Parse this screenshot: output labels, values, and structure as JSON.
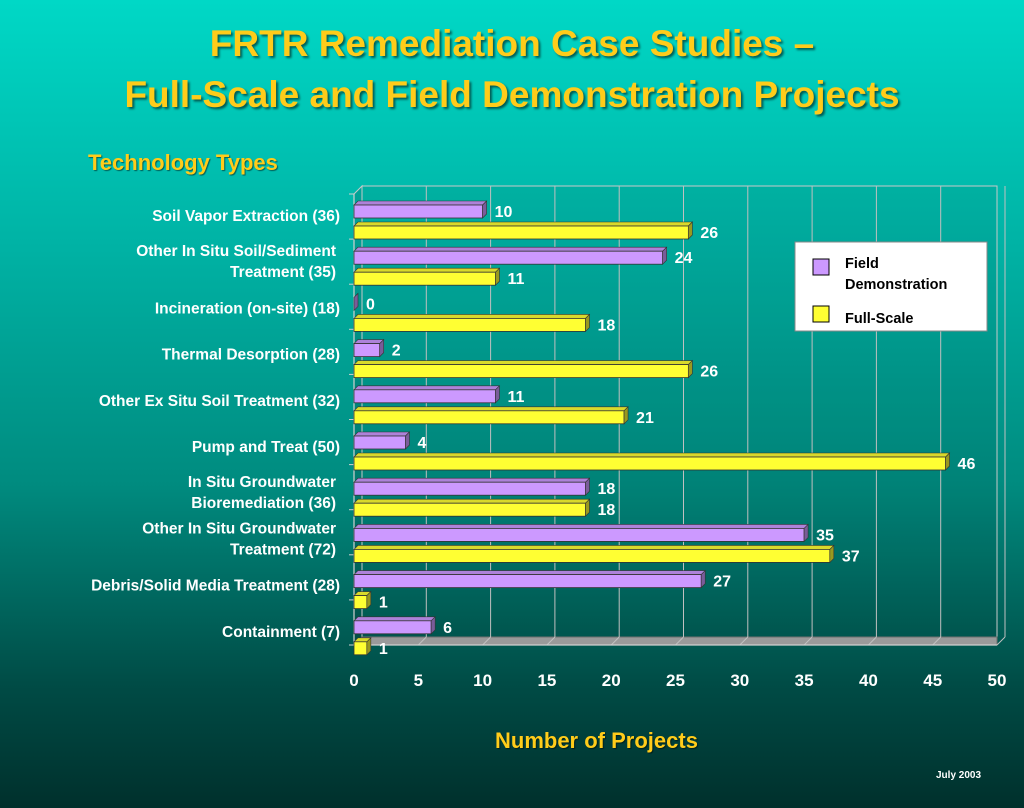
{
  "title_line1": "FRTR Remediation Case Studies –",
  "title_line2": "Full-Scale and Field Demonstration Projects",
  "subtitle": "Technology Types",
  "x_axis_title": "Number of Projects",
  "date": "July 2003",
  "colors": {
    "field_demo": "#cc99ff",
    "full_scale": "#ffff33",
    "title_text": "#ffcc1a",
    "background_top": "#00d8c6",
    "background_bottom": "#00302c"
  },
  "chart_data": {
    "type": "bar",
    "orientation": "horizontal",
    "categories": [
      [
        "Soil Vapor Extraction (36)"
      ],
      [
        "Other In Situ Soil/Sediment",
        "Treatment (35)"
      ],
      [
        "Incineration (on-site) (18)"
      ],
      [
        "Thermal Desorption (28)"
      ],
      [
        "Other Ex Situ Soil Treatment (32)"
      ],
      [
        "Pump and Treat (50)"
      ],
      [
        "In Situ Groundwater",
        "Bioremediation (36)"
      ],
      [
        "Other In Situ Groundwater",
        "Treatment (72)"
      ],
      [
        "Debris/Solid Media Treatment (28)"
      ],
      [
        "Containment (7)"
      ]
    ],
    "series": [
      {
        "name": "Field Demonstration",
        "values": [
          10,
          24,
          0,
          2,
          11,
          4,
          18,
          35,
          27,
          6
        ]
      },
      {
        "name": "Full-Scale",
        "values": [
          26,
          11,
          18,
          26,
          21,
          46,
          18,
          37,
          1,
          1
        ]
      }
    ],
    "xlim": [
      0,
      50
    ],
    "xticks": [
      "0",
      "5",
      "10",
      "15",
      "20",
      "25",
      "30",
      "35",
      "40",
      "45",
      "50"
    ],
    "xlabel": "Number of Projects",
    "grid": true,
    "legend_position": "top-right",
    "legend": [
      "Field Demonstration",
      "Full-Scale"
    ]
  }
}
